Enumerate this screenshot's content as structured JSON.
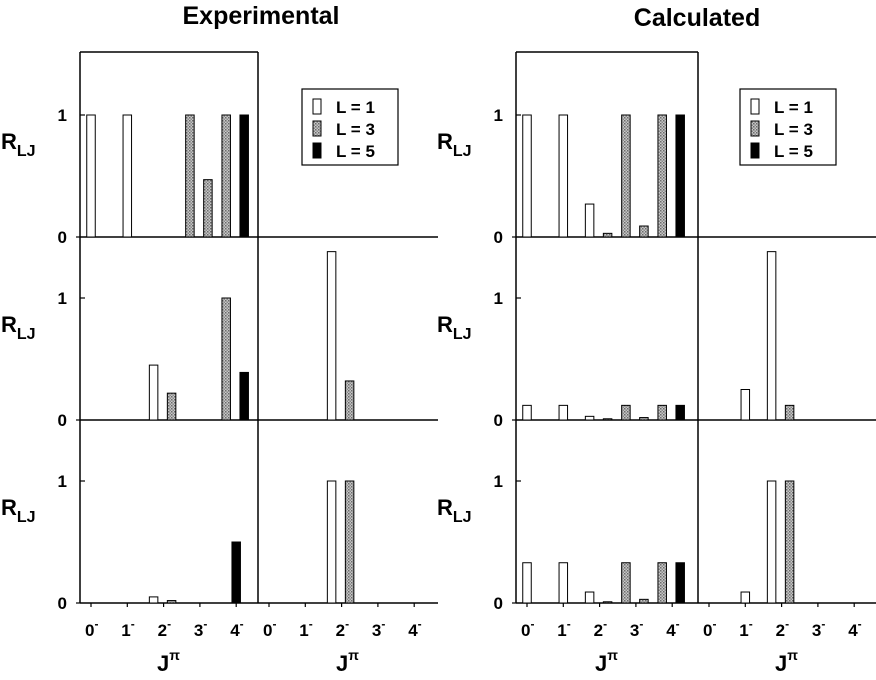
{
  "figure": {
    "left_title": "Experimental",
    "right_title": "Calculated",
    "ylabel_main": "R",
    "ylabel_sub": "LJ",
    "xlabel_main": "J",
    "xlabel_sup": "π",
    "y_tick_labels": [
      "0",
      "1"
    ],
    "x_tick_labels": [
      {
        "base": "0",
        "sup": "-"
      },
      {
        "base": "1",
        "sup": "-"
      },
      {
        "base": "2",
        "sup": "-"
      },
      {
        "base": "3",
        "sup": "-"
      },
      {
        "base": "4",
        "sup": "-"
      }
    ]
  },
  "legend": [
    {
      "label": "L = 1",
      "fill": "white"
    },
    {
      "label": "L = 3",
      "fill": "hatched"
    },
    {
      "label": "L = 5",
      "fill": "black"
    }
  ],
  "colors": {
    "L1": "#ffffff",
    "L3": "#a8a8a8",
    "L5": "#000000",
    "axis": "#000000"
  },
  "chart_data": [
    {
      "title": "Experimental",
      "type": "bar",
      "layout": "grid 3 rows x 2 columns; top-left panel spans full width",
      "categories": [
        "0-",
        "1-",
        "2-",
        "3-",
        "4-"
      ],
      "ylim": [
        0,
        1.5
      ],
      "panels": [
        {
          "row": 1,
          "col": "left",
          "bars": [
            {
              "J": "0-",
              "L": 1,
              "value": 1.0
            },
            {
              "J": "1-",
              "L": 1,
              "value": 1.0
            },
            {
              "J": "2-",
              "L": 1,
              "value": 0.0
            },
            {
              "J": "2-",
              "L": 3,
              "value": 0.0
            },
            {
              "J": "3-",
              "L": 3,
              "value": 1.0
            },
            {
              "J": "3-",
              "L": 3,
              "value": 0.47
            },
            {
              "J": "4-",
              "L": 3,
              "value": 1.0
            },
            {
              "J": "4-",
              "L": 5,
              "value": 1.0
            }
          ]
        },
        {
          "row": 2,
          "col": "left",
          "bars": [
            {
              "J": "2-",
              "L": 1,
              "value": 0.45
            },
            {
              "J": "2-",
              "L": 3,
              "value": 0.22
            },
            {
              "J": "4-",
              "L": 3,
              "value": 1.0
            },
            {
              "J": "4-",
              "L": 5,
              "value": 0.39
            }
          ]
        },
        {
          "row": 2,
          "col": "right",
          "bars": [
            {
              "J": "2-",
              "L": 1,
              "value": 1.38
            },
            {
              "J": "2-",
              "L": 3,
              "value": 0.32
            }
          ]
        },
        {
          "row": 3,
          "col": "left",
          "bars": [
            {
              "J": "2-",
              "L": 1,
              "value": 0.05
            },
            {
              "J": "2-",
              "L": 3,
              "value": 0.02
            },
            {
              "J": "4-",
              "L": 5,
              "value": 0.5
            }
          ]
        },
        {
          "row": 3,
          "col": "right",
          "bars": [
            {
              "J": "2-",
              "L": 1,
              "value": 1.0
            },
            {
              "J": "2-",
              "L": 3,
              "value": 1.0
            }
          ]
        }
      ]
    },
    {
      "title": "Calculated",
      "type": "bar",
      "layout": "grid 3 rows x 2 columns; top-left panel spans full width",
      "categories": [
        "0-",
        "1-",
        "2-",
        "3-",
        "4-"
      ],
      "ylim": [
        0,
        1.5
      ],
      "panels": [
        {
          "row": 1,
          "col": "left",
          "bars": [
            {
              "J": "0-",
              "L": 1,
              "value": 1.0
            },
            {
              "J": "1-",
              "L": 1,
              "value": 1.0
            },
            {
              "J": "2-",
              "L": 1,
              "value": 0.27
            },
            {
              "J": "2-",
              "L": 3,
              "value": 0.03
            },
            {
              "J": "3-",
              "L": 3,
              "value": 1.0
            },
            {
              "J": "3-",
              "L": 3,
              "value": 0.09
            },
            {
              "J": "4-",
              "L": 3,
              "value": 1.0
            },
            {
              "J": "4-",
              "L": 5,
              "value": 1.0
            }
          ]
        },
        {
          "row": 2,
          "col": "left",
          "bars": [
            {
              "J": "0-",
              "L": 1,
              "value": 0.12
            },
            {
              "J": "1-",
              "L": 1,
              "value": 0.12
            },
            {
              "J": "2-",
              "L": 1,
              "value": 0.03
            },
            {
              "J": "2-",
              "L": 3,
              "value": 0.01
            },
            {
              "J": "3-",
              "L": 3,
              "value": 0.12
            },
            {
              "J": "3-",
              "L": 3,
              "value": 0.02
            },
            {
              "J": "4-",
              "L": 3,
              "value": 0.12
            },
            {
              "J": "4-",
              "L": 5,
              "value": 0.12
            }
          ]
        },
        {
          "row": 2,
          "col": "right",
          "bars": [
            {
              "J": "1-",
              "L": 1,
              "value": 0.25
            },
            {
              "J": "2-",
              "L": 1,
              "value": 1.38
            },
            {
              "J": "2-",
              "L": 3,
              "value": 0.12
            }
          ]
        },
        {
          "row": 3,
          "col": "left",
          "bars": [
            {
              "J": "0-",
              "L": 1,
              "value": 0.33
            },
            {
              "J": "1-",
              "L": 1,
              "value": 0.33
            },
            {
              "J": "2-",
              "L": 1,
              "value": 0.09
            },
            {
              "J": "2-",
              "L": 3,
              "value": 0.01
            },
            {
              "J": "3-",
              "L": 3,
              "value": 0.33
            },
            {
              "J": "3-",
              "L": 3,
              "value": 0.03
            },
            {
              "J": "4-",
              "L": 3,
              "value": 0.33
            },
            {
              "J": "4-",
              "L": 5,
              "value": 0.33
            }
          ]
        },
        {
          "row": 3,
          "col": "right",
          "bars": [
            {
              "J": "1-",
              "L": 1,
              "value": 0.09
            },
            {
              "J": "2-",
              "L": 1,
              "value": 1.0
            },
            {
              "J": "2-",
              "L": 3,
              "value": 1.0
            }
          ]
        }
      ]
    }
  ]
}
